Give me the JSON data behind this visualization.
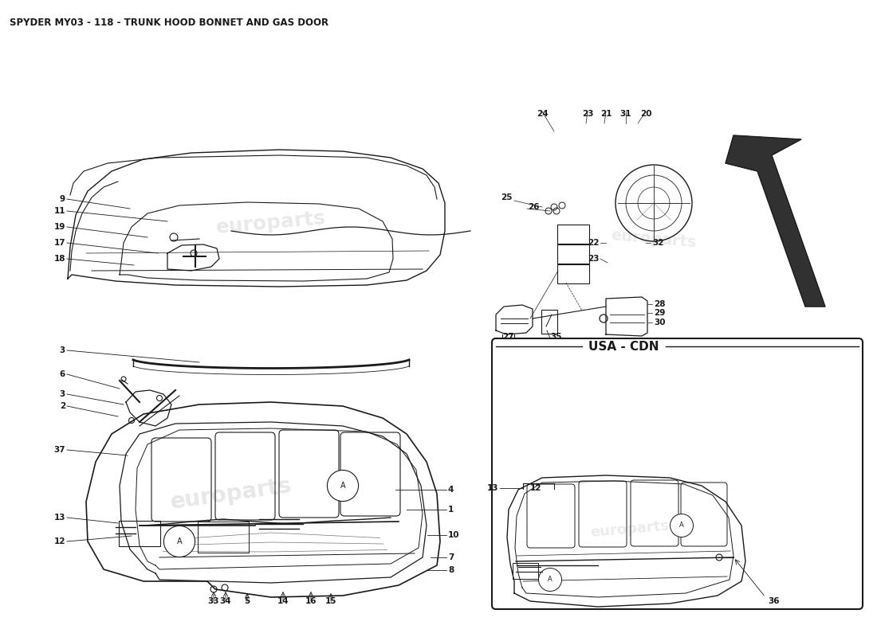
{
  "title": "SPYDER MY03 - 118 - TRUNK HOOD BONNET AND GAS DOOR",
  "title_fontsize": 8.5,
  "bg_color": "#ffffff",
  "text_color": "#1a1a1a",
  "label_fontsize": 7.5,
  "usa_cdn_label": "USA - CDN",
  "watermark_color": "#d8d8d8",
  "watermark_text": "europarts",
  "dark": "#1a1a1a",
  "gray": "#888888"
}
